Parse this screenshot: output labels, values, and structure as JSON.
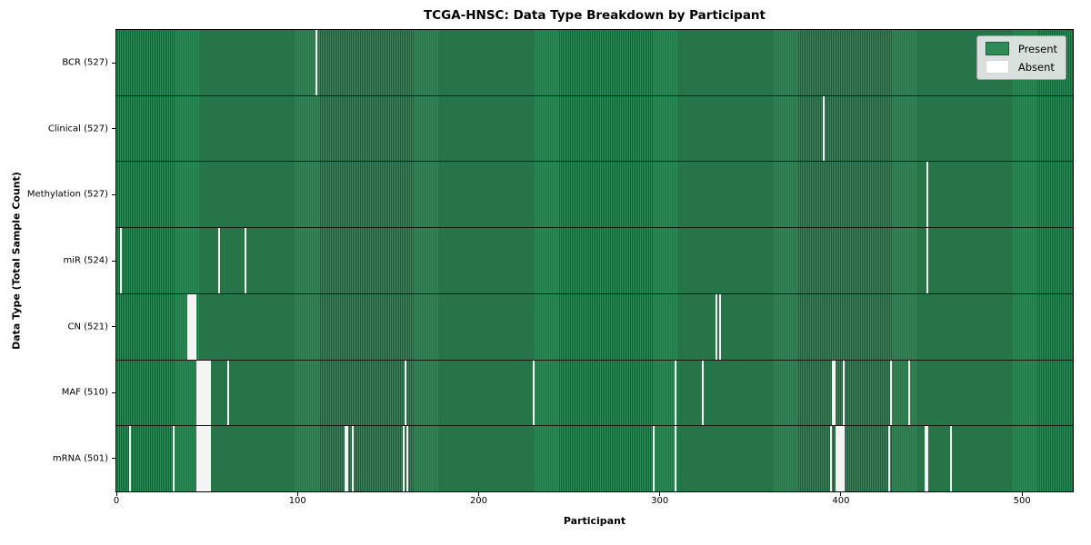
{
  "chart_data": {
    "type": "heatmap",
    "title": "TCGA-HNSC: Data Type Breakdown by Participant",
    "xlabel": "Participant",
    "ylabel": "Data Type (Total Sample Count)",
    "n_participants": 528,
    "xlim": [
      0,
      528
    ],
    "x_ticks": [
      0,
      100,
      200,
      300,
      400,
      500
    ],
    "grid": false,
    "legend_position": "upper right",
    "legend": [
      {
        "label": "Present",
        "color": "#2E8B57"
      },
      {
        "label": "Absent",
        "color": "#FFFFFF"
      }
    ],
    "colors": {
      "present": "#2E8B57",
      "present_edge": "#1F5C3A",
      "absent_line": "#F4F4F4",
      "row_separator": "#161616"
    },
    "rows": [
      {
        "label": "BCR (527)",
        "name": "BCR",
        "present_count": 527,
        "absent_count": 1,
        "absent_participants": [
          110
        ]
      },
      {
        "label": "Clinical (527)",
        "name": "Clinical",
        "present_count": 527,
        "absent_count": 1,
        "absent_participants": [
          390
        ]
      },
      {
        "label": "Methylation (527)",
        "name": "Methylation",
        "present_count": 527,
        "absent_count": 1,
        "absent_participants": [
          447
        ]
      },
      {
        "label": "miR (524)",
        "name": "miR",
        "present_count": 524,
        "absent_count": 4,
        "absent_participants": [
          2,
          56,
          71,
          447
        ]
      },
      {
        "label": "CN (521)",
        "name": "CN",
        "present_count": 521,
        "absent_count": 7,
        "absent_participants": [
          39,
          40,
          41,
          42,
          43,
          331,
          333
        ]
      },
      {
        "label": "MAF (510)",
        "name": "MAF",
        "present_count": 510,
        "absent_count": 18,
        "absent_participants": [
          44,
          45,
          46,
          47,
          48,
          49,
          50,
          51,
          61,
          159,
          230,
          308,
          323,
          395,
          396,
          401,
          427,
          437
        ]
      },
      {
        "label": "mRNA (501)",
        "name": "mRNA",
        "present_count": 501,
        "absent_count": 27,
        "absent_participants": [
          7,
          31,
          44,
          45,
          46,
          47,
          48,
          49,
          50,
          51,
          126,
          127,
          130,
          158,
          160,
          296,
          308,
          394,
          397,
          398,
          399,
          400,
          401,
          426,
          446,
          447,
          460
        ]
      }
    ]
  }
}
